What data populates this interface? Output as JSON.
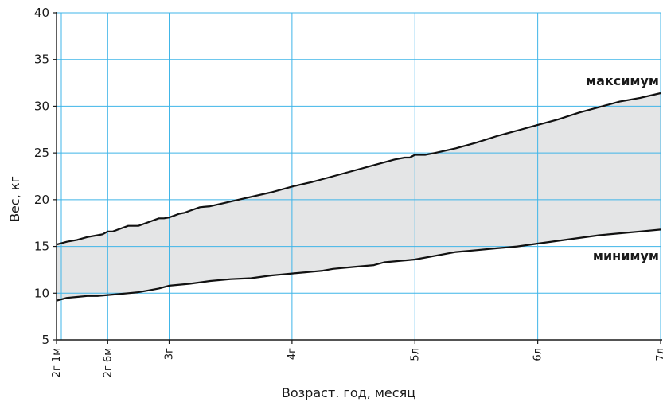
{
  "chart_data": {
    "type": "area",
    "xlabel": "Возраст. год, месяц",
    "ylabel": "Вес, кг",
    "ylim": [
      5,
      40
    ],
    "yticks": [
      5,
      10,
      15,
      20,
      25,
      30,
      35,
      40
    ],
    "xlim_months": [
      25,
      84
    ],
    "xticks": [
      {
        "months": 25,
        "label": "2г 1м"
      },
      {
        "months": 30,
        "label": "2г 6м"
      },
      {
        "months": 36,
        "label": "3г"
      },
      {
        "months": 48,
        "label": "4г"
      },
      {
        "months": 60,
        "label": "5л"
      },
      {
        "months": 72,
        "label": "6л"
      },
      {
        "months": 84,
        "label": "7л"
      }
    ],
    "grid": true,
    "fill_color": "#e4e5e6",
    "grid_color": "#3fb5e8",
    "line_color": "#111111",
    "series": [
      {
        "name": "максимум",
        "x": [
          25,
          26,
          27,
          28,
          29,
          29.5,
          30,
          30.5,
          31,
          32,
          33,
          34,
          35,
          35.5,
          36,
          37,
          37.5,
          38,
          39,
          40,
          42,
          44,
          46,
          48,
          50,
          51,
          52,
          54,
          56,
          58,
          59,
          59.5,
          60,
          61,
          62,
          64,
          66,
          68,
          70,
          72,
          74,
          76,
          78,
          80,
          82,
          84
        ],
        "values": [
          15.2,
          15.5,
          15.7,
          16.0,
          16.2,
          16.3,
          16.6,
          16.6,
          16.8,
          17.2,
          17.2,
          17.6,
          18.0,
          18.0,
          18.1,
          18.5,
          18.6,
          18.8,
          19.2,
          19.3,
          19.8,
          20.3,
          20.8,
          21.4,
          21.9,
          22.2,
          22.5,
          23.1,
          23.7,
          24.3,
          24.5,
          24.5,
          24.8,
          24.8,
          25.0,
          25.5,
          26.1,
          26.8,
          27.4,
          28.0,
          28.6,
          29.3,
          29.9,
          30.5,
          30.9,
          31.4
        ]
      },
      {
        "name": "минимум",
        "x": [
          25,
          26,
          27,
          28,
          29,
          30,
          31,
          32,
          33,
          34,
          35,
          36,
          38,
          40,
          42,
          44,
          46,
          47,
          48,
          50,
          51,
          52,
          54,
          56,
          57,
          58,
          60,
          62,
          64,
          66,
          68,
          70,
          72,
          74,
          76,
          78,
          80,
          82,
          84
        ],
        "values": [
          9.2,
          9.5,
          9.6,
          9.7,
          9.7,
          9.8,
          9.9,
          10.0,
          10.1,
          10.3,
          10.5,
          10.8,
          11.0,
          11.3,
          11.5,
          11.6,
          11.9,
          12.0,
          12.1,
          12.3,
          12.4,
          12.6,
          12.8,
          13.0,
          13.3,
          13.4,
          13.6,
          14.0,
          14.4,
          14.6,
          14.8,
          15.0,
          15.3,
          15.6,
          15.9,
          16.2,
          16.4,
          16.6,
          16.8
        ]
      }
    ]
  }
}
